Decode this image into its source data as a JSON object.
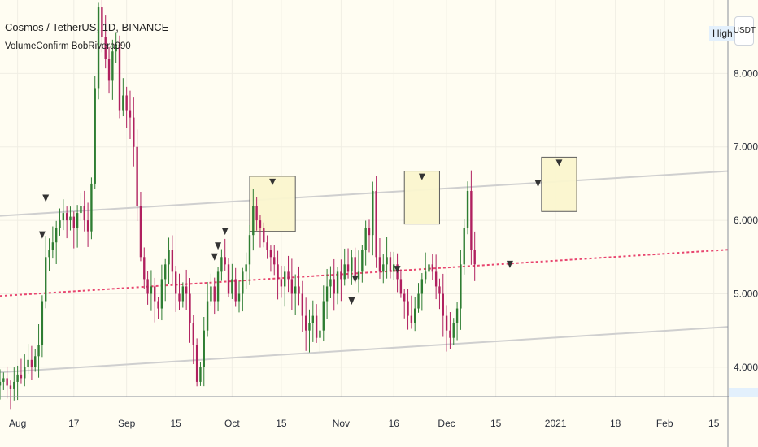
{
  "header": {
    "title": "Cosmos / TetherUS, 1D, BINANCE",
    "indicator": "VolumeConfirm BobRivera990",
    "price_label": "High",
    "currency": "USDT"
  },
  "colors": {
    "background": "#fffdf2",
    "grid": "#f0eee4",
    "up": "#2e7d32",
    "down": "#b0205f",
    "channel": "#cfcfcf",
    "midline": "#e8456f",
    "box_fill": "#fbf6cf",
    "box_stroke": "#555555",
    "marker": "#333333",
    "axis_line": "#8a8f9a"
  },
  "chart_data": {
    "type": "candlestick",
    "title": "Cosmos / TetherUS, 1D, BINANCE",
    "ylim": [
      3.6,
      9.0
    ],
    "y_ticks": [
      4.0,
      5.0,
      6.0,
      7.0,
      8.0
    ],
    "y_tick_labels": [
      "4.000",
      "5.000",
      "6.000",
      "7.000",
      "8.000"
    ],
    "x_range": [
      "2020-07-27",
      "2021-02-19"
    ],
    "x_ticks": [
      {
        "date": "2020-08-01",
        "label": "Aug"
      },
      {
        "date": "2020-08-17",
        "label": "17"
      },
      {
        "date": "2020-09-01",
        "label": "Sep"
      },
      {
        "date": "2020-09-15",
        "label": "15"
      },
      {
        "date": "2020-10-01",
        "label": "Oct"
      },
      {
        "date": "2020-10-15",
        "label": "15"
      },
      {
        "date": "2020-11-01",
        "label": "Nov"
      },
      {
        "date": "2020-11-16",
        "label": "16"
      },
      {
        "date": "2020-12-01",
        "label": "Dec"
      },
      {
        "date": "2020-12-15",
        "label": "15"
      },
      {
        "date": "2021-01-01",
        "label": "2021"
      },
      {
        "date": "2021-01-18",
        "label": "18"
      },
      {
        "date": "2021-02-01",
        "label": "Feb"
      },
      {
        "date": "2021-02-15",
        "label": "15"
      }
    ],
    "grid": true,
    "closes": [
      3.8,
      3.85,
      3.75,
      3.7,
      3.8,
      3.9,
      3.85,
      4.0,
      4.1,
      4.0,
      4.15,
      4.3,
      4.9,
      5.5,
      5.6,
      5.7,
      5.9,
      6.0,
      6.1,
      6.0,
      6.05,
      5.9,
      6.1,
      6.2,
      6.0,
      5.85,
      6.5,
      7.8,
      8.9,
      8.5,
      8.2,
      7.9,
      8.3,
      8.4,
      7.5,
      7.7,
      7.5,
      7.4,
      7.0,
      6.2,
      5.5,
      5.2,
      5.0,
      5.1,
      4.9,
      4.8,
      5.2,
      5.4,
      5.6,
      5.3,
      5.0,
      4.9,
      5.1,
      5.0,
      4.6,
      4.3,
      3.8,
      4.0,
      4.5,
      4.9,
      5.1,
      4.9,
      5.3,
      5.5,
      5.4,
      5.0,
      5.2,
      4.9,
      5.0,
      5.3,
      5.4,
      5.8,
      6.2,
      6.0,
      5.9,
      5.7,
      5.6,
      5.5,
      5.4,
      5.2,
      5.1,
      5.3,
      5.2,
      5.0,
      5.1,
      5.0,
      4.7,
      4.5,
      4.6,
      4.7,
      4.4,
      4.5,
      4.9,
      5.1,
      5.2,
      5.0,
      5.3,
      5.2,
      5.4,
      5.3,
      5.5,
      5.2,
      5.3,
      5.6,
      5.9,
      5.8,
      6.4,
      5.5,
      5.3,
      5.4,
      5.5,
      5.3,
      5.4,
      5.2,
      5.0,
      4.9,
      4.7,
      4.6,
      4.8,
      5.0,
      5.2,
      5.3,
      5.4,
      5.3,
      5.1,
      5.0,
      4.7,
      4.5,
      4.4,
      4.6,
      4.8,
      5.4,
      5.9,
      6.4,
      5.6,
      5.4
    ]
  }
}
